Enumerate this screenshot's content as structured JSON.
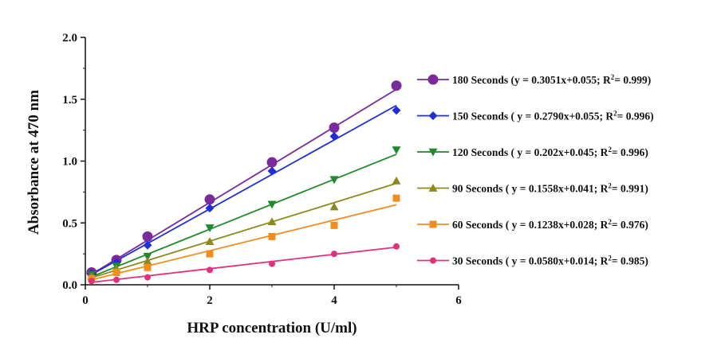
{
  "chart_data": {
    "type": "scatter",
    "xlabel": "HRP concentration (U/ml)",
    "ylabel": "Absorbance at 470 nm",
    "xlim": [
      0,
      6
    ],
    "ylim": [
      0,
      2.0
    ],
    "xticks": [
      "0",
      "2",
      "4",
      "6"
    ],
    "yticks": [
      "0.0",
      "0.5",
      "1.0",
      "1.5",
      "2.0"
    ],
    "grid": false,
    "legend_position": "right",
    "x": [
      0.1,
      0.5,
      1,
      2,
      3,
      4,
      5
    ],
    "series": [
      {
        "name": "180 Seconds",
        "legend_prefix": "180 Seconds (y = 0.3051x+0.055; R",
        "legend_suffix": "= 0.999)",
        "color": "#7b2a9c",
        "marker": "circle",
        "values": [
          0.1,
          0.2,
          0.39,
          0.69,
          0.99,
          1.27,
          1.61
        ],
        "fit": {
          "slope": 0.3051,
          "intercept": 0.055
        }
      },
      {
        "name": "150 Seconds",
        "legend_prefix": "150 Seconds  ( y = 0.2790x+0.055; R",
        "legend_suffix": "= 0.996)",
        "color": "#1f2fd6",
        "marker": "diamond",
        "values": [
          0.09,
          0.18,
          0.32,
          0.62,
          0.92,
          1.2,
          1.41
        ],
        "fit": {
          "slope": 0.279,
          "intercept": 0.055
        }
      },
      {
        "name": "120 Seconds",
        "legend_prefix": "120 Seconds  ( y = 0.202x+0.045; R",
        "legend_suffix": "= 0.996)",
        "color": "#1e8a2a",
        "marker": "triangle-down",
        "values": [
          0.08,
          0.15,
          0.23,
          0.46,
          0.65,
          0.85,
          1.09
        ],
        "fit": {
          "slope": 0.202,
          "intercept": 0.045
        }
      },
      {
        "name": "90 Seconds",
        "legend_prefix": "90 Seconds  ( y = 0.1558x+0.041; R",
        "legend_suffix": "= 0.991)",
        "color": "#8c8a1e",
        "marker": "triangle-up",
        "values": [
          0.07,
          0.13,
          0.19,
          0.35,
          0.51,
          0.63,
          0.84
        ],
        "fit": {
          "slope": 0.1558,
          "intercept": 0.041
        }
      },
      {
        "name": "60 Seconds",
        "legend_prefix": "60 Seconds  ( y = 0.1238x+0.028; R",
        "legend_suffix": "= 0.976)",
        "color": "#f28c1c",
        "marker": "square",
        "values": [
          0.05,
          0.1,
          0.14,
          0.25,
          0.39,
          0.48,
          0.7
        ],
        "fit": {
          "slope": 0.1238,
          "intercept": 0.028
        }
      },
      {
        "name": "30 Seconds",
        "legend_prefix": "30 Seconds ( y = 0.0580x+0.014; R",
        "legend_suffix": "= 0.985)",
        "color": "#e0317a",
        "marker": "circle-small",
        "values": [
          0.03,
          0.04,
          0.06,
          0.12,
          0.17,
          0.25,
          0.31
        ],
        "fit": {
          "slope": 0.058,
          "intercept": 0.014
        }
      }
    ]
  }
}
